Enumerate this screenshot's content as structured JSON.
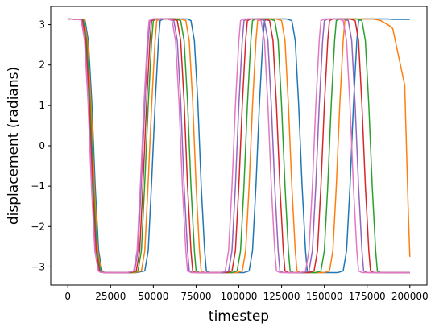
{
  "chart_data": {
    "type": "line",
    "title": "",
    "xlabel": "timestep",
    "ylabel": "displacement (radians)",
    "xlim": [
      -10000,
      210000
    ],
    "ylim": [
      -3.45,
      3.45
    ],
    "xticks": [
      0,
      25000,
      50000,
      75000,
      100000,
      125000,
      150000,
      175000,
      200000
    ],
    "xtick_labels": [
      "0",
      "25000",
      "50000",
      "75000",
      "100000",
      "125000",
      "150000",
      "175000",
      "200000"
    ],
    "yticks": [
      -3,
      -2,
      -1,
      0,
      1,
      2,
      3
    ],
    "ytick_labels": [
      "−3",
      "−2",
      "−1",
      "0",
      "1",
      "2",
      "3"
    ],
    "grid": false,
    "legend": "none",
    "series": [
      {
        "color": "#1f77b4",
        "x": [
          0,
          10000,
          12000,
          14000,
          16000,
          18000,
          20000,
          21000,
          23000,
          40000,
          45000,
          47000,
          49000,
          51000,
          53000,
          54000,
          56000,
          70000,
          72000,
          74000,
          76000,
          78000,
          80000,
          81000,
          83000,
          103000,
          106000,
          108000,
          110000,
          112000,
          114000,
          115000,
          117000,
          128000,
          131000,
          133000,
          135000,
          137000,
          139000,
          140000,
          142000,
          158000,
          161000,
          163000,
          165000,
          167000,
          169000,
          170000,
          172000,
          187000,
          190000,
          192000,
          194000,
          196000,
          198000,
          199000,
          200000
        ],
        "y": [
          3.14,
          3.12,
          2.6,
          1.1,
          -1.0,
          -2.6,
          -3.1,
          -3.13,
          -3.14,
          -3.14,
          -3.1,
          -2.6,
          -0.9,
          1.0,
          2.6,
          3.1,
          3.14,
          3.14,
          3.1,
          2.6,
          1.1,
          -1.0,
          -2.6,
          -3.1,
          -3.14,
          -3.14,
          -3.1,
          -2.6,
          -1.0,
          1.0,
          2.6,
          3.1,
          3.14,
          3.14,
          3.1,
          2.6,
          1.0,
          -1.0,
          -2.6,
          -3.1,
          -3.14,
          -3.14,
          -3.1,
          -2.6,
          -1.0,
          1.0,
          2.6,
          3.1,
          3.14,
          3.14,
          3.13,
          3.13,
          3.13,
          3.13,
          3.13,
          3.13,
          3.13
        ]
      },
      {
        "color": "#ff7f0e",
        "x": [
          0,
          9500,
          11500,
          13500,
          15500,
          17500,
          19500,
          20500,
          22500,
          39000,
          43000,
          45000,
          47000,
          49000,
          51000,
          52000,
          54000,
          66000,
          69000,
          71000,
          73000,
          75000,
          77000,
          78000,
          80000,
          99000,
          102000,
          104000,
          106000,
          108000,
          110000,
          111000,
          113000,
          122000,
          125000,
          127000,
          129000,
          131000,
          133000,
          134000,
          136000,
          150000,
          153000,
          155000,
          157000,
          159000,
          161000,
          162000,
          164000,
          178000,
          181000,
          183000,
          185000,
          187000,
          189000,
          190000,
          192000,
          197000,
          198000,
          199000,
          200000
        ],
        "y": [
          3.14,
          3.12,
          2.6,
          1.1,
          -1.0,
          -2.6,
          -3.1,
          -3.13,
          -3.14,
          -3.14,
          -3.1,
          -2.6,
          -0.9,
          1.0,
          2.6,
          3.1,
          3.14,
          3.14,
          3.1,
          2.6,
          1.1,
          -1.0,
          -2.6,
          -3.1,
          -3.14,
          -3.14,
          -3.1,
          -2.6,
          -1.0,
          1.0,
          2.6,
          3.1,
          3.14,
          3.14,
          3.1,
          2.6,
          1.0,
          -1.0,
          -2.6,
          -3.1,
          -3.14,
          -3.14,
          -3.1,
          -2.6,
          -1.0,
          1.0,
          2.6,
          3.1,
          3.14,
          3.14,
          3.12,
          3.1,
          3.05,
          3.0,
          2.95,
          2.9,
          2.5,
          1.5,
          0.0,
          -1.5,
          -2.75
        ]
      },
      {
        "color": "#2ca02c",
        "x": [
          0,
          9000,
          11000,
          13000,
          15000,
          17000,
          19000,
          20000,
          22000,
          37000,
          41000,
          43000,
          45000,
          47000,
          49000,
          50000,
          52000,
          63000,
          66000,
          68000,
          70000,
          72000,
          74000,
          75000,
          77000,
          96000,
          99000,
          101000,
          103000,
          105000,
          107000,
          108000,
          110000,
          118000,
          121000,
          123000,
          125000,
          127000,
          129000,
          130000,
          132000,
          145000,
          148000,
          150000,
          152000,
          154000,
          156000,
          157000,
          159000,
          169000,
          172000,
          174000,
          176000,
          178000,
          180000,
          181000,
          183000,
          190000,
          192000,
          194000,
          196000,
          198000,
          200000
        ],
        "y": [
          3.14,
          3.12,
          2.6,
          1.1,
          -1.0,
          -2.6,
          -3.1,
          -3.13,
          -3.14,
          -3.14,
          -3.1,
          -2.6,
          -0.9,
          1.0,
          2.6,
          3.1,
          3.14,
          3.14,
          3.1,
          2.6,
          1.1,
          -1.0,
          -2.6,
          -3.1,
          -3.14,
          -3.14,
          -3.1,
          -2.6,
          -1.0,
          1.0,
          2.6,
          3.1,
          3.14,
          3.14,
          3.1,
          2.6,
          1.0,
          -1.0,
          -2.6,
          -3.1,
          -3.14,
          -3.14,
          -3.1,
          -2.6,
          -1.0,
          1.0,
          2.6,
          3.1,
          3.14,
          3.14,
          3.1,
          2.6,
          1.0,
          -1.0,
          -2.6,
          -3.1,
          -3.14,
          -3.14,
          -3.14,
          -3.14,
          -3.14,
          -3.14,
          -3.14
        ]
      },
      {
        "color": "#d62728",
        "x": [
          0,
          8500,
          10500,
          12500,
          14500,
          16500,
          18500,
          19500,
          21500,
          36000,
          40000,
          42000,
          44000,
          46000,
          48000,
          49000,
          51000,
          61000,
          64000,
          66000,
          68000,
          70000,
          72000,
          73000,
          75000,
          93000,
          96000,
          98000,
          100000,
          102000,
          104000,
          105000,
          107000,
          115000,
          118000,
          120000,
          122000,
          124000,
          126000,
          127000,
          129000,
          141000,
          144000,
          146000,
          148000,
          150000,
          152000,
          153000,
          155000,
          165000,
          168000,
          170000,
          172000,
          174000,
          176000,
          177000,
          179000,
          200000
        ],
        "y": [
          3.14,
          3.12,
          2.6,
          1.1,
          -1.0,
          -2.6,
          -3.1,
          -3.13,
          -3.14,
          -3.14,
          -3.1,
          -2.6,
          -0.9,
          1.0,
          2.6,
          3.1,
          3.14,
          3.14,
          3.1,
          2.6,
          1.1,
          -1.0,
          -2.6,
          -3.1,
          -3.14,
          -3.14,
          -3.1,
          -2.6,
          -1.0,
          1.0,
          2.6,
          3.1,
          3.14,
          3.14,
          3.1,
          2.6,
          1.0,
          -1.0,
          -2.6,
          -3.1,
          -3.14,
          -3.14,
          -3.1,
          -2.6,
          -1.0,
          1.0,
          2.6,
          3.1,
          3.14,
          3.14,
          3.1,
          2.6,
          1.0,
          -1.0,
          -2.6,
          -3.1,
          -3.14,
          -3.14
        ]
      },
      {
        "color": "#9467bd",
        "x": [
          0,
          8000,
          10000,
          12000,
          14000,
          16000,
          18000,
          19000,
          21000,
          35000,
          39000,
          41000,
          43000,
          45000,
          47000,
          48000,
          50000,
          59000,
          62000,
          64000,
          66000,
          68000,
          70000,
          71000,
          73000,
          91000,
          94000,
          96000,
          98000,
          100000,
          102000,
          103000,
          105000,
          112000,
          115000,
          117000,
          119000,
          121000,
          123000,
          124000,
          126000,
          138000,
          141000,
          143000,
          145000,
          147000,
          149000,
          150000,
          152000,
          161000,
          164000,
          166000,
          168000,
          170000,
          172000,
          173000,
          175000,
          200000
        ],
        "y": [
          3.14,
          3.12,
          2.6,
          1.1,
          -1.0,
          -2.6,
          -3.1,
          -3.13,
          -3.14,
          -3.14,
          -3.1,
          -2.6,
          -0.9,
          1.0,
          2.6,
          3.1,
          3.14,
          3.14,
          3.1,
          2.6,
          1.1,
          -1.0,
          -2.6,
          -3.1,
          -3.14,
          -3.14,
          -3.1,
          -2.6,
          -1.0,
          1.0,
          2.6,
          3.1,
          3.14,
          3.14,
          3.1,
          2.6,
          1.0,
          -1.0,
          -2.6,
          -3.1,
          -3.14,
          -3.14,
          -3.1,
          -2.6,
          -1.0,
          1.0,
          2.6,
          3.1,
          3.14,
          3.14,
          3.1,
          2.6,
          1.0,
          -1.0,
          -2.6,
          -3.1,
          -3.14,
          -3.14
        ]
      },
      {
        "color": "#e377c2",
        "x": [
          0,
          7800,
          9800,
          11800,
          13800,
          15800,
          17800,
          18800,
          20800,
          34500,
          38500,
          40500,
          42500,
          44500,
          46500,
          47500,
          49500,
          58000,
          61000,
          63000,
          65000,
          67000,
          69000,
          70000,
          72000,
          89000,
          92000,
          94000,
          96000,
          98000,
          100000,
          101000,
          103000,
          110000,
          113000,
          115000,
          117000,
          119000,
          121000,
          122000,
          124000,
          136000,
          139000,
          141000,
          143000,
          145000,
          147000,
          148000,
          150000,
          158000,
          161000,
          163000,
          165000,
          167000,
          169000,
          170000,
          172000,
          200000
        ],
        "y": [
          3.14,
          3.12,
          2.6,
          1.1,
          -1.0,
          -2.6,
          -3.1,
          -3.13,
          -3.14,
          -3.14,
          -3.1,
          -2.6,
          -0.9,
          1.0,
          2.6,
          3.1,
          3.14,
          3.14,
          3.1,
          2.6,
          1.1,
          -1.0,
          -2.6,
          -3.1,
          -3.14,
          -3.14,
          -3.1,
          -2.6,
          -1.0,
          1.0,
          2.6,
          3.1,
          3.14,
          3.14,
          3.1,
          2.6,
          1.0,
          -1.0,
          -2.6,
          -3.1,
          -3.14,
          -3.14,
          -3.1,
          -2.6,
          -1.0,
          1.0,
          2.6,
          3.1,
          3.14,
          3.14,
          3.1,
          2.6,
          1.0,
          -1.0,
          -2.6,
          -3.1,
          -3.14,
          -3.14
        ]
      }
    ]
  }
}
